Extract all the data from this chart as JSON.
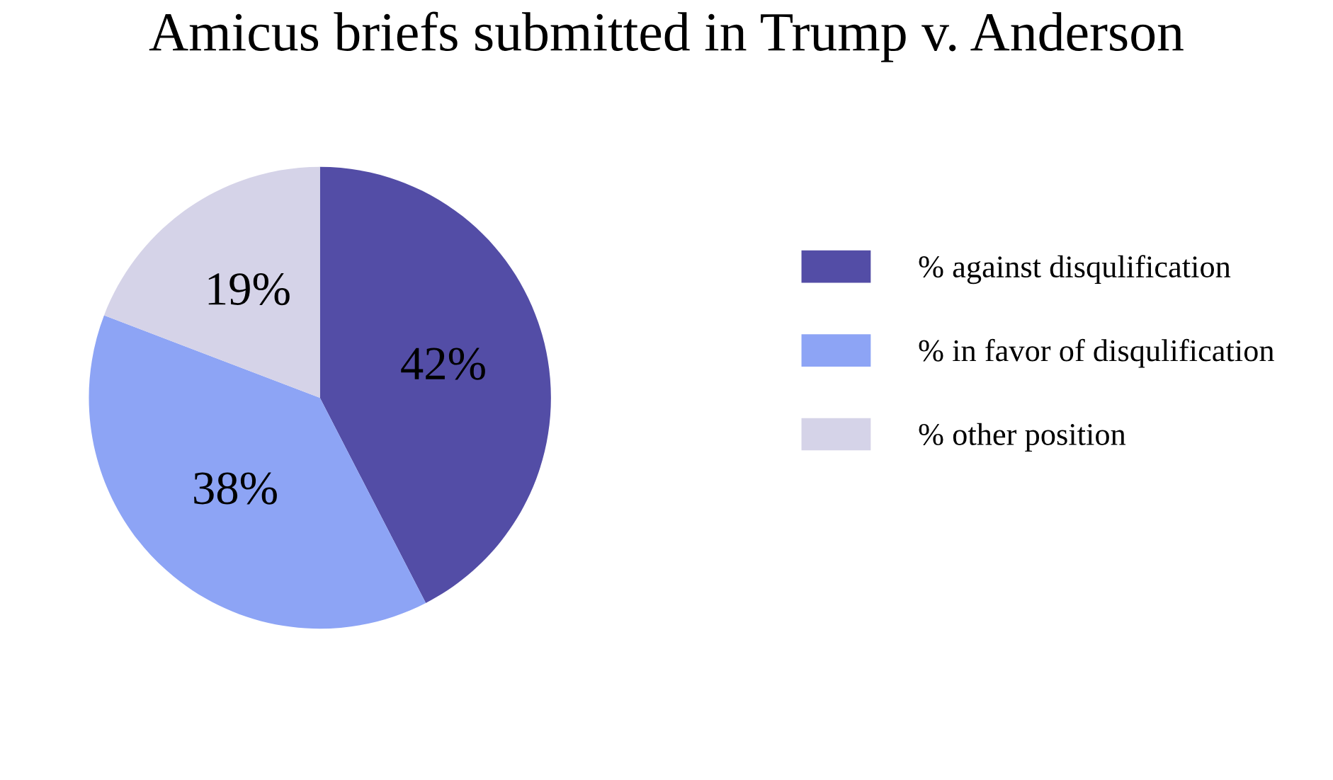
{
  "chart_data": {
    "type": "pie",
    "title": "Amicus briefs submitted in Trump v. Anderson",
    "categories": [
      "% against disqulification",
      "% in favor of disqulification",
      "% other position"
    ],
    "values": [
      42,
      38,
      19
    ],
    "colors": [
      "#534da6",
      "#8da4f5",
      "#d5d3e8"
    ],
    "value_labels": [
      "42%",
      "38%",
      "19%"
    ],
    "legend": "right"
  }
}
